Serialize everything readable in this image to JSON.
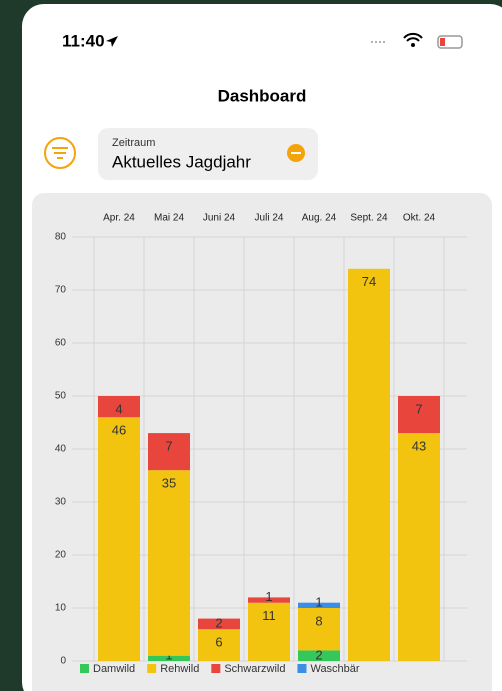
{
  "status": {
    "time": "11:40"
  },
  "header": {
    "title": "Dashboard"
  },
  "filter": {
    "label": "Zeitraum",
    "value": "Aktuelles Jagdjahr"
  },
  "chart_data": {
    "type": "stacked_bar",
    "categories": [
      "Apr. 24",
      "Mai 24",
      "Juni 24",
      "Juli 24",
      "Aug. 24",
      "Sept. 24",
      "Okt. 24"
    ],
    "series": [
      {
        "name": "Damwild",
        "color": "#34c759",
        "values": [
          0,
          1,
          0,
          0,
          2,
          0,
          0
        ]
      },
      {
        "name": "Rehwild",
        "color": "#f2c40f",
        "values": [
          46,
          35,
          6,
          11,
          8,
          74,
          43
        ]
      },
      {
        "name": "Schwarzwild",
        "color": "#e8453c",
        "values": [
          4,
          7,
          2,
          1,
          0,
          0,
          7
        ]
      },
      {
        "name": "Waschbär",
        "color": "#3a8ee6",
        "values": [
          0,
          0,
          0,
          0,
          1,
          0,
          0
        ]
      }
    ],
    "ylim": [
      0,
      80
    ],
    "yticks": [
      0,
      10,
      20,
      30,
      40,
      50,
      60,
      70,
      80
    ],
    "grid": true,
    "legend": "bottom"
  }
}
